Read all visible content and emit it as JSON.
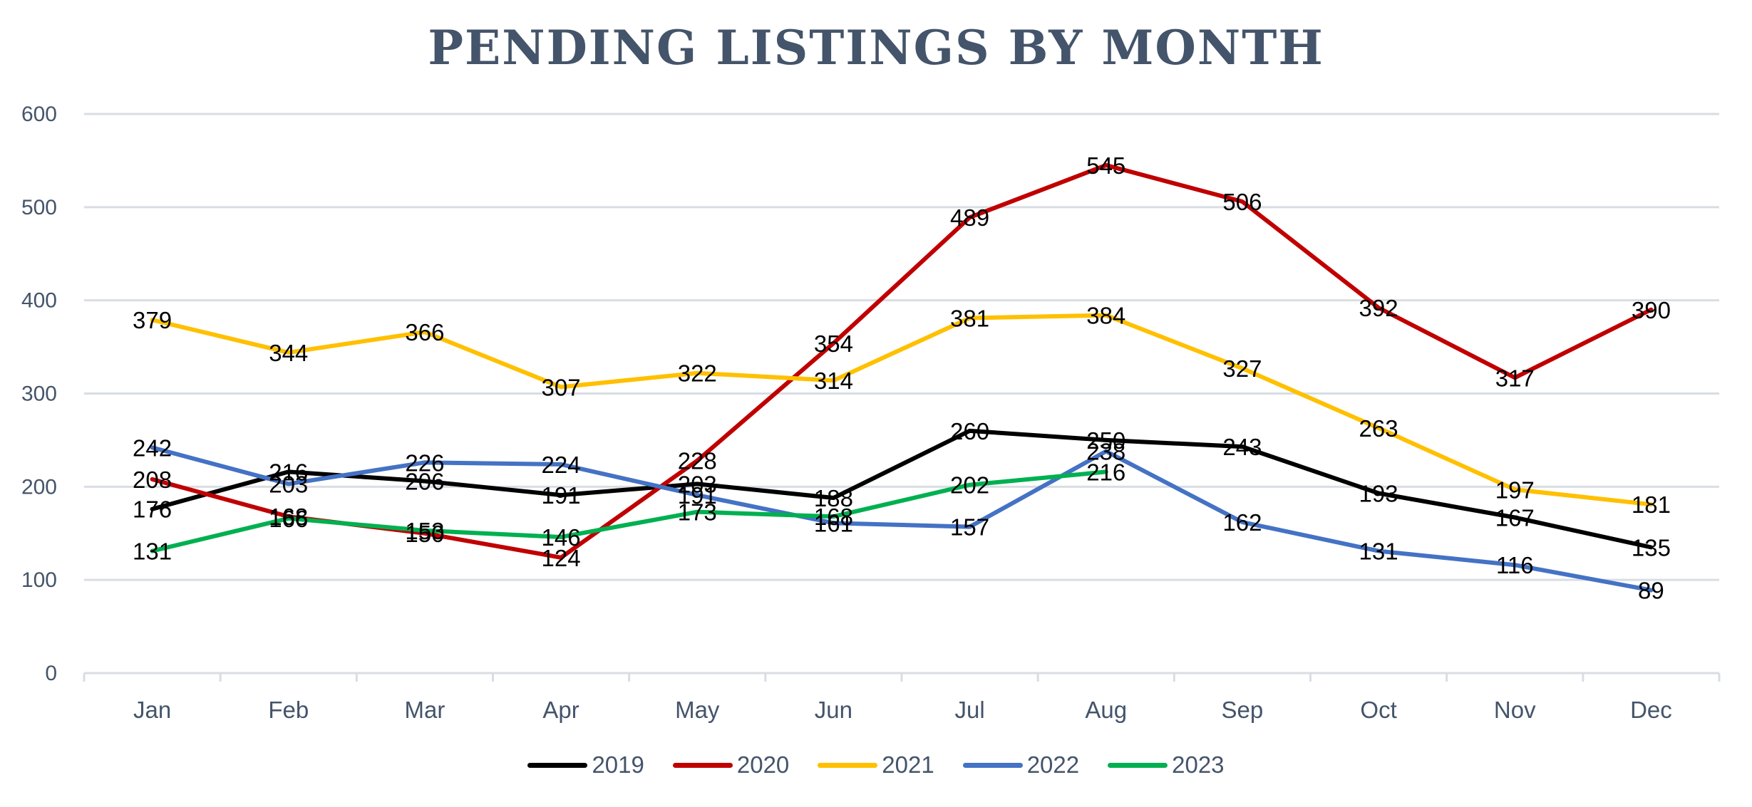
{
  "chart_data": {
    "type": "line",
    "title": "Pending Listings by Month",
    "xlabel": "",
    "ylabel": "",
    "ylim": [
      0,
      600
    ],
    "yticks": [
      0,
      100,
      200,
      300,
      400,
      500,
      600
    ],
    "grid": true,
    "legend_position": "bottom",
    "categories": [
      "Jan",
      "Feb",
      "Mar",
      "Apr",
      "May",
      "Jun",
      "Jul",
      "Aug",
      "Sep",
      "Oct",
      "Nov",
      "Dec"
    ],
    "series": [
      {
        "name": "2019",
        "color": "#000000",
        "values": [
          176,
          216,
          206,
          191,
          203,
          188,
          260,
          250,
          243,
          193,
          167,
          135
        ]
      },
      {
        "name": "2020",
        "color": "#c00000",
        "values": [
          208,
          168,
          150,
          124,
          228,
          354,
          489,
          545,
          506,
          392,
          317,
          390
        ]
      },
      {
        "name": "2021",
        "color": "#ffc000",
        "values": [
          379,
          344,
          366,
          307,
          322,
          314,
          381,
          384,
          327,
          263,
          197,
          181
        ]
      },
      {
        "name": "2022",
        "color": "#4472c4",
        "values": [
          242,
          203,
          226,
          224,
          191,
          161,
          157,
          238,
          162,
          131,
          116,
          89
        ]
      },
      {
        "name": "2023",
        "color": "#00b050",
        "values": [
          131,
          166,
          153,
          146,
          173,
          168,
          202,
          216,
          null,
          null,
          null,
          null
        ]
      }
    ]
  }
}
